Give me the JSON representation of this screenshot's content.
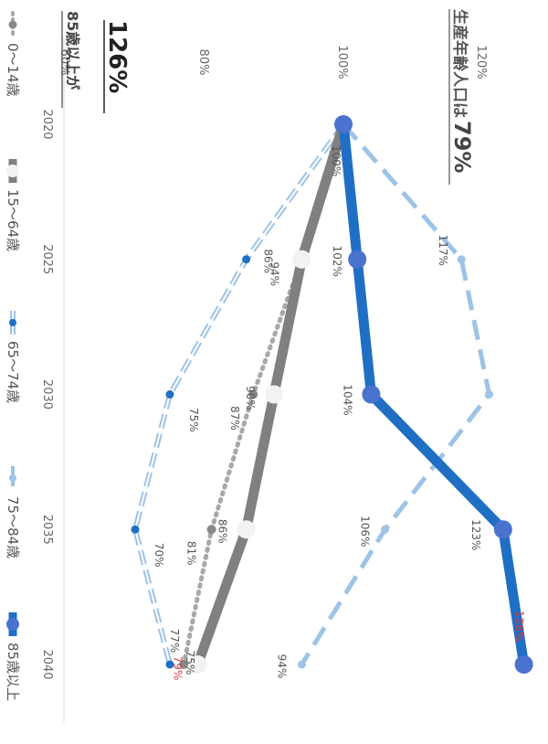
{
  "chart_data": {
    "type": "line",
    "x": [
      "2020",
      "2025",
      "2030",
      "2035",
      "2040"
    ],
    "ylim": [
      60,
      120
    ],
    "y_ticks": [
      "60%",
      "80%",
      "100%",
      "120%"
    ],
    "grid": false,
    "legend_position": "bottom",
    "series": [
      {
        "name": "0～14歳",
        "style": "dotted",
        "color": "#a8a8a8",
        "values": [
          100,
          94,
          87,
          81,
          77
        ],
        "labels": [
          "",
          "",
          "87%",
          "81%",
          "77%"
        ]
      },
      {
        "name": "15～64歳",
        "style": "thick-gray",
        "color": "#808080",
        "values": [
          100,
          94,
          90,
          86,
          79
        ],
        "labels": [
          "",
          "94%",
          "90%",
          "86%",
          "79%"
        ]
      },
      {
        "name": "65～74歳",
        "style": "double",
        "color": "#9ec3e6",
        "values": [
          100,
          86,
          75,
          70,
          75
        ],
        "labels": [
          "",
          "86%",
          "75%",
          "70%",
          "75%"
        ]
      },
      {
        "name": "75～84歳",
        "style": "dashed",
        "color": "#9dc3e6",
        "values": [
          100,
          117,
          121,
          106,
          94
        ],
        "labels": [
          "",
          "117%",
          "",
          "106%",
          "94%"
        ]
      },
      {
        "name": "85歳以上",
        "style": "thick-blue",
        "color": "#1f6fc4",
        "values": [
          100,
          102,
          104,
          123,
          126
        ],
        "labels": [
          "100%",
          "102%",
          "104%",
          "123%",
          "126%"
        ]
      }
    ],
    "annotations": {
      "elder_text": "85歳以上が",
      "elder_value": "126%",
      "working_text": "生産年齢人口は",
      "working_value": "79%"
    }
  }
}
